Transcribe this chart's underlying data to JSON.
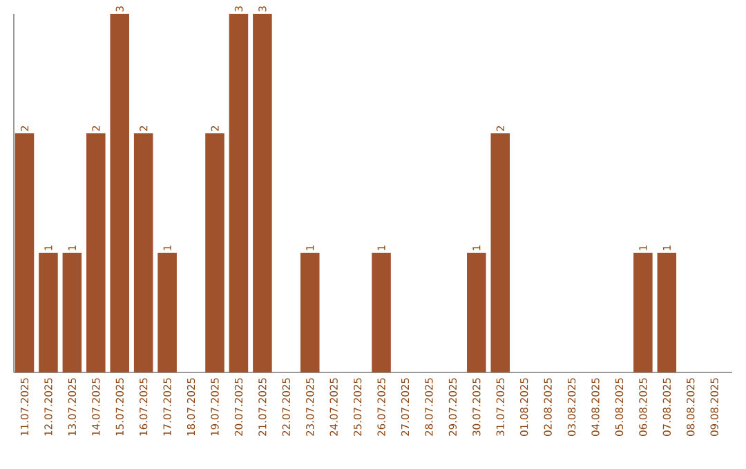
{
  "chart_data": {
    "type": "bar",
    "categories": [
      "11.07.2025",
      "12.07.2025",
      "13.07.2025",
      "14.07.2025",
      "15.07.2025",
      "16.07.2025",
      "17.07.2025",
      "18.07.2025",
      "19.07.2025",
      "20.07.2025",
      "21.07.2025",
      "22.07.2025",
      "23.07.2025",
      "24.07.2025",
      "25.07.2025",
      "26.07.2025",
      "27.07.2025",
      "28.07.2025",
      "29.07.2025",
      "30.07.2025",
      "31.07.2025",
      "01.08.2025",
      "02.08.2025",
      "03.08.2025",
      "04.08.2025",
      "05.08.2025",
      "06.08.2025",
      "07.08.2025",
      "08.08.2025",
      "09.08.2025"
    ],
    "values": [
      2,
      1,
      1,
      2,
      3,
      2,
      1,
      0,
      2,
      3,
      3,
      0,
      1,
      0,
      0,
      1,
      0,
      0,
      0,
      1,
      2,
      0,
      0,
      0,
      0,
      0,
      1,
      1,
      0,
      0
    ],
    "value_labels": [
      "2",
      "1",
      "1",
      "2",
      "3",
      "2",
      "1",
      null,
      "2",
      "3",
      "3",
      null,
      "1",
      null,
      null,
      "1",
      null,
      null,
      null,
      "1",
      "2",
      null,
      null,
      null,
      null,
      null,
      "1",
      "1",
      null,
      null
    ],
    "color": "#a0522d",
    "ylim": [
      0,
      3
    ],
    "tick_labels": "x",
    "grid": false
  }
}
